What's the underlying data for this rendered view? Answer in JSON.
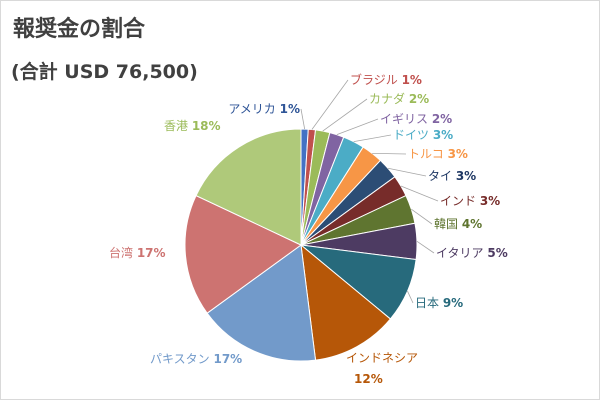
{
  "title": "報奨金の割合",
  "subtitle": "(合計 USD 76,500)",
  "chart_data": {
    "type": "pie",
    "title": "報奨金の割合",
    "subtitle": "(合計 USD 76,500)",
    "legend": "none",
    "slices": [
      {
        "label": "アメリカ",
        "value_text": "1%",
        "value": 1,
        "color": "#4472C4"
      },
      {
        "label": "ブラジル",
        "value_text": "1%",
        "value": 1,
        "color": "#C0504D"
      },
      {
        "label": "カナダ",
        "value_text": "2%",
        "value": 2,
        "color": "#9BBB59"
      },
      {
        "label": "イギリス",
        "value_text": "2%",
        "value": 2,
        "color": "#8064A2"
      },
      {
        "label": "ドイツ",
        "value_text": "3%",
        "value": 3,
        "color": "#4BACC6"
      },
      {
        "label": "トルコ",
        "value_text": "3%",
        "value": 3,
        "color": "#F79646"
      },
      {
        "label": "タイ",
        "value_text": "3%",
        "value": 3,
        "color": "#2C4D75"
      },
      {
        "label": "インド",
        "value_text": "3%",
        "value": 3,
        "color": "#772C2A"
      },
      {
        "label": "韓国",
        "value_text": "4%",
        "value": 4,
        "color": "#5F7530"
      },
      {
        "label": "イタリア",
        "value_text": "5%",
        "value": 5,
        "color": "#4D3B62"
      },
      {
        "label": "日本",
        "value_text": "9%",
        "value": 9,
        "color": "#276A7C"
      },
      {
        "label": "インドネシア",
        "value_text": "12%",
        "value": 12,
        "color": "#B65708"
      },
      {
        "label": "パキスタン",
        "value_text": "17%",
        "value": 17,
        "color": "#729ACA"
      },
      {
        "label": "台湾",
        "value_text": "17%",
        "value": 17,
        "color": "#CD7371"
      },
      {
        "label": "香港",
        "value_text": "18%",
        "value": 18,
        "color": "#AFC97A"
      }
    ]
  }
}
